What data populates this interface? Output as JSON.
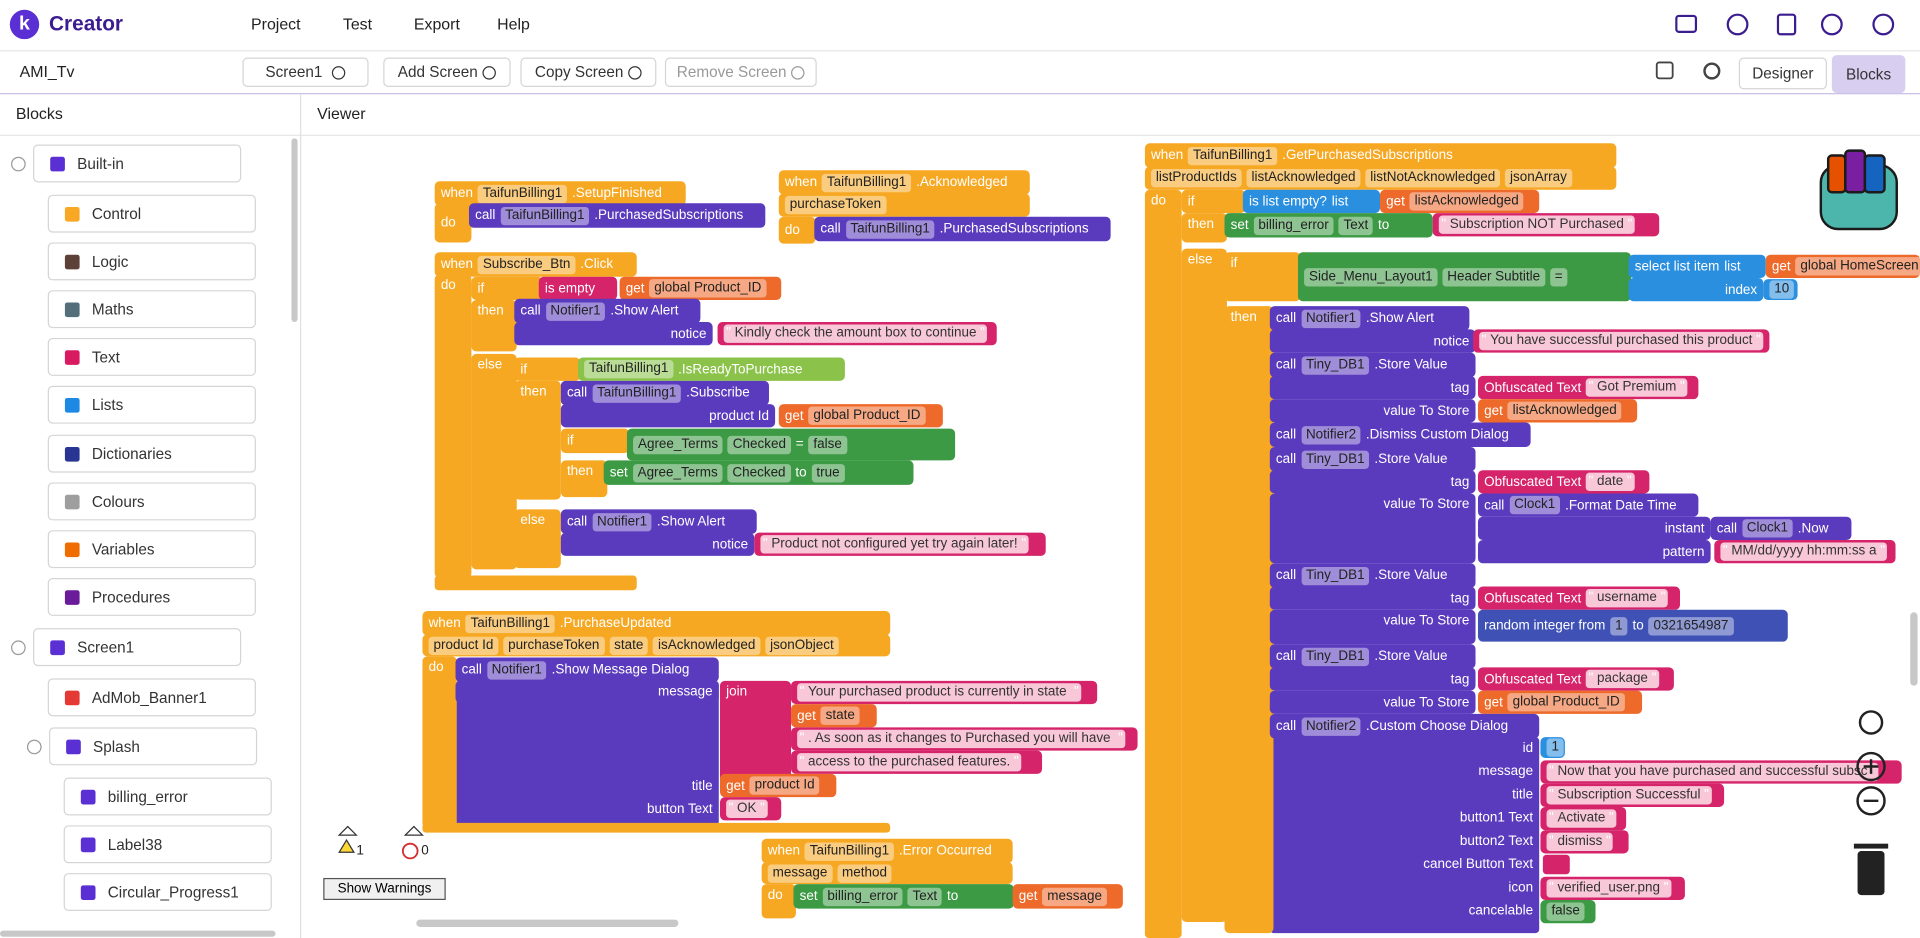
{
  "header": {
    "logo_letter": "k",
    "brand": "Creator",
    "menu": [
      "Project",
      "Test",
      "Export",
      "Help"
    ]
  },
  "toolbar": {
    "project": "AMI_Tv",
    "screen": "Screen1",
    "add_screen": "Add Screen",
    "copy_screen": "Copy Screen",
    "remove_screen": "Remove Screen",
    "designer": "Designer",
    "blocks": "Blocks"
  },
  "sidebar": {
    "title": "Blocks",
    "items": [
      "Built-in",
      "Control",
      "Logic",
      "Maths",
      "Text",
      "Lists",
      "Dictionaries",
      "Colours",
      "Variables",
      "Procedures",
      "Screen1",
      "AdMob_Banner1",
      "Splash",
      "billing_error",
      "Label38",
      "Circular_Progress1"
    ]
  },
  "viewer": {
    "title": "Viewer",
    "warnings": {
      "warning_count": "1",
      "error_count": "0",
      "button": "Show Warnings"
    },
    "blocks": [
      [
        "when",
        "TaifunBilling1",
        ".SetupFinished"
      ],
      [
        "do"
      ],
      [
        "call",
        "TaifunBilling1",
        ".PurchasedSubscriptions"
      ],
      [
        "when",
        "TaifunBilling1",
        ".Acknowledged"
      ],
      [
        "purchaseToken"
      ],
      [
        "do"
      ],
      [
        "call",
        "TaifunBilling1",
        ".PurchasedSubscriptions"
      ],
      [
        "when",
        "Subscribe_Btn",
        ".Click"
      ],
      [
        "do"
      ],
      [
        "if"
      ],
      [
        "is empty"
      ],
      [
        "get",
        "global Product_ID"
      ],
      [
        "then"
      ],
      [
        "call",
        "Notifier1",
        ".Show Alert"
      ],
      [
        "notice"
      ],
      [
        "Kindly check the amount box to continue"
      ],
      [
        "else"
      ],
      [
        "if"
      ],
      [
        "TaifunBilling1",
        ".IsReadyToPurchase"
      ],
      [
        "then"
      ],
      [
        "call",
        "TaifunBilling1",
        ".Subscribe"
      ],
      [
        "product Id"
      ],
      [
        "get",
        "global Product_ID"
      ],
      [
        "if"
      ],
      [
        "Agree_Terms",
        "Checked",
        "=",
        "false"
      ],
      [
        "then"
      ],
      [
        "set",
        "Agree_Terms",
        "Checked",
        "to",
        "true"
      ],
      [
        "else"
      ],
      [
        "call",
        "Notifier1",
        ".Show Alert"
      ],
      [
        "notice"
      ],
      [
        "Product not configured yet try again later!"
      ],
      [
        "when",
        "TaifunBilling1",
        ".PurchaseUpdated"
      ],
      [
        "product Id",
        "purchaseToken",
        "state",
        "isAcknowledged",
        "jsonObject"
      ],
      [
        "do"
      ],
      [
        "call",
        "Notifier1",
        ".Show Message Dialog"
      ],
      [
        "message"
      ],
      [
        "join"
      ],
      [
        "Your purchased product is currently in state "
      ],
      [
        "get",
        "state"
      ],
      [
        ". As soon as it changes to Purchased you will have "
      ],
      [
        "access to the purchased features."
      ],
      [
        "title"
      ],
      [
        "get",
        "product Id"
      ],
      [
        "button Text"
      ],
      [
        "OK"
      ],
      [
        "when",
        "TaifunBilling1",
        ".Error Occurred"
      ],
      [
        "message",
        "method"
      ],
      [
        "do"
      ],
      [
        "set",
        "billing_error",
        "Text",
        "to"
      ],
      [
        "get",
        "message"
      ],
      [
        "when",
        "TaifunBilling1",
        ".GetPurchasedSubscriptions"
      ],
      [
        "listProductIds",
        "listAcknowledged",
        "listNotAcknowledged",
        "jsonArray"
      ],
      [
        "do"
      ],
      [
        "if"
      ],
      [
        "is list empty?",
        "list"
      ],
      [
        "get",
        "listAcknowledged"
      ],
      [
        "then"
      ],
      [
        "set",
        "billing_error",
        "Text",
        "to"
      ],
      [
        "Subscription NOT Purchased"
      ],
      [
        "else"
      ],
      [
        "if"
      ],
      [
        "Side_Menu_Layout1",
        "Header Subtitle",
        "="
      ],
      [
        "select list item",
        "list"
      ],
      [
        "get",
        "global HomeScreen"
      ],
      [
        "index"
      ],
      [
        "10"
      ],
      [
        "then"
      ],
      [
        "call",
        "Notifier1",
        ".Show Alert"
      ],
      [
        "notice"
      ],
      [
        "You have successful purchased this product"
      ],
      [
        "call",
        "Tiny_DB1",
        ".Store Value"
      ],
      [
        "tag"
      ],
      [
        "Obfuscated Text",
        "Got Premium"
      ],
      [
        "value To Store"
      ],
      [
        "get",
        "listAcknowledged"
      ],
      [
        "call",
        "Notifier2",
        ".Dismiss Custom Dialog"
      ],
      [
        "call",
        "Tiny_DB1",
        ".Store Value"
      ],
      [
        "tag"
      ],
      [
        "Obfuscated Text",
        "date"
      ],
      [
        "value To Store"
      ],
      [
        "call",
        "Clock1",
        ".Format Date Time"
      ],
      [
        "instant"
      ],
      [
        "call",
        "Clock1",
        ".Now"
      ],
      [
        "pattern"
      ],
      [
        "MM/dd/yyyy hh:mm:ss a"
      ],
      [
        "call",
        "Tiny_DB1",
        ".Store Value"
      ],
      [
        "tag"
      ],
      [
        "Obfuscated Text",
        "username"
      ],
      [
        "value To Store"
      ],
      [
        "random integer from",
        "1",
        "to",
        "0321654987"
      ],
      [
        "call",
        "Tiny_DB1",
        ".Store Value"
      ],
      [
        "tag"
      ],
      [
        "Obfuscated Text",
        "package"
      ],
      [
        "value To Store"
      ],
      [
        "get",
        "global Product_ID"
      ],
      [
        "call",
        "Notifier2",
        ".Custom Choose Dialog"
      ],
      [
        "id"
      ],
      [
        "1"
      ],
      [
        "message"
      ],
      [
        "Now that you have purchased and successful subsc"
      ],
      [
        "title"
      ],
      [
        "Subscription Successful"
      ],
      [
        "button1 Text"
      ],
      [
        "Activate"
      ],
      [
        "button2 Text"
      ],
      [
        "dismiss"
      ],
      [
        "cancel Button Text"
      ],
      [
        "icon"
      ],
      [
        "verified_user.png"
      ],
      [
        "cancelable"
      ],
      [
        "false"
      ]
    ]
  }
}
